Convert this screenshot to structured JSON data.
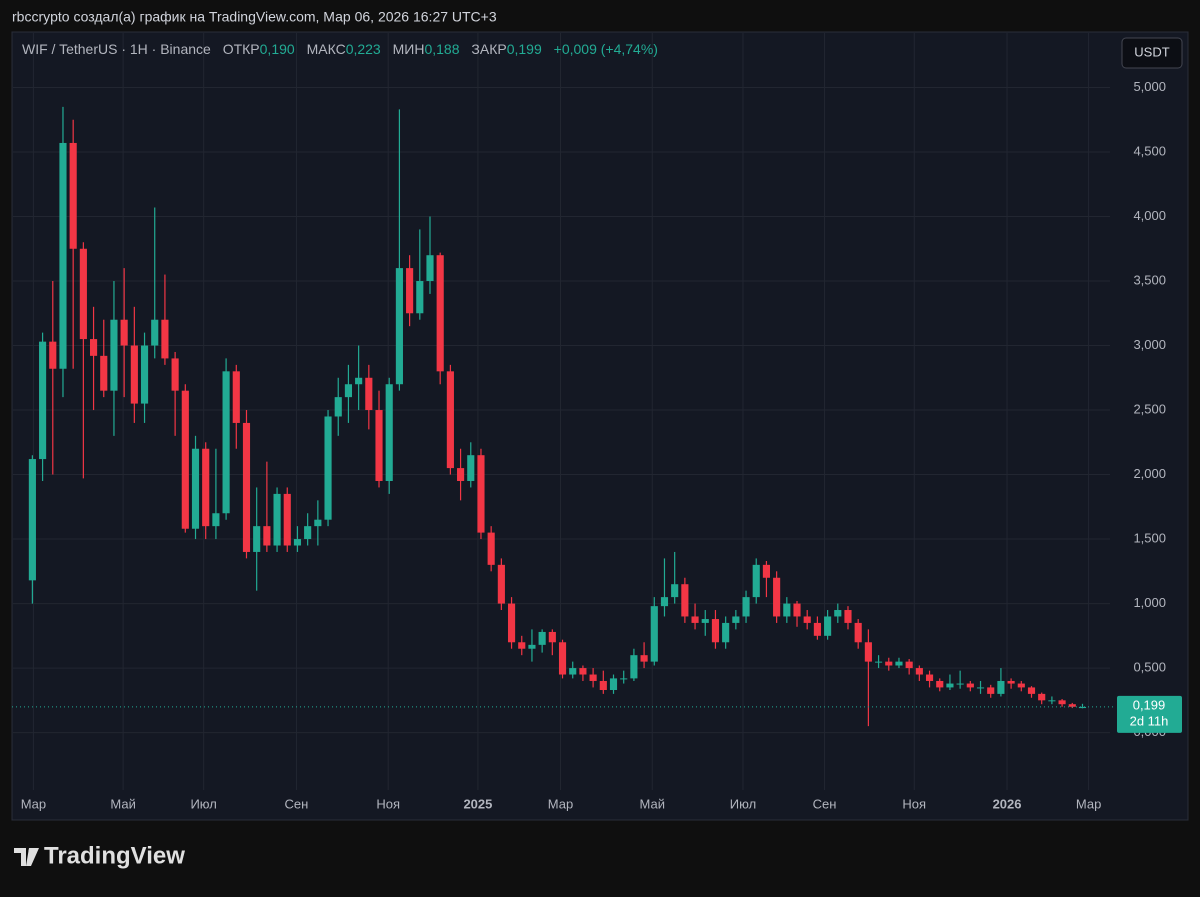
{
  "caption": "rbccrypto создал(а) график на TradingView.com, Мар 06, 2026 16:27 UTC+3",
  "brand": "TradingView",
  "currency_button": "USDT",
  "legend": {
    "symbol": "WIF / TetherUS · 1H · Binance",
    "open_label": "ОТКР",
    "open": "0,190",
    "high_label": "МАКС",
    "high": "0,223",
    "low_label": "МИН",
    "low": "0,188",
    "close_label": "ЗАКР",
    "close": "0,199",
    "change": "+0,009 (+4,74%)"
  },
  "chart_data": {
    "type": "candlestick",
    "up_color": "#22ab94",
    "down_color": "#f23645",
    "grid": true,
    "open": [
      1.18,
      2.12,
      3.03,
      2.82,
      4.57,
      3.75,
      3.05,
      2.92,
      2.65,
      3.2,
      3.0,
      2.55,
      3.0,
      3.2,
      2.9,
      2.65,
      1.58,
      2.2,
      1.6,
      1.7,
      2.8,
      2.4,
      1.4,
      1.6,
      1.45,
      1.85,
      1.45,
      1.5,
      1.6,
      1.65,
      2.45,
      2.6,
      2.7,
      2.75,
      2.5,
      1.95,
      2.7,
      3.6,
      3.25,
      3.5,
      3.7,
      2.8,
      2.05,
      1.95,
      2.15,
      1.55,
      1.3,
      1.0,
      0.7,
      0.65,
      0.68,
      0.78,
      0.7,
      0.45,
      0.5,
      0.45,
      0.4,
      0.33,
      0.42,
      0.42,
      0.6,
      0.55,
      0.98,
      1.05,
      1.15,
      0.9,
      0.85,
      0.88,
      0.7,
      0.85,
      0.9,
      1.05,
      1.3,
      1.2,
      0.9,
      1.0,
      0.9,
      0.85,
      0.75,
      0.9,
      0.95,
      0.85,
      0.7,
      0.55,
      0.55,
      0.52,
      0.55,
      0.5,
      0.45,
      0.4,
      0.35,
      0.38,
      0.38,
      0.35,
      0.35,
      0.3,
      0.4,
      0.38,
      0.35,
      0.3,
      0.25,
      0.25,
      0.22,
      0.19
    ],
    "high": [
      2.15,
      3.1,
      3.5,
      4.85,
      4.75,
      3.8,
      3.3,
      3.2,
      3.5,
      3.6,
      3.3,
      3.1,
      4.07,
      3.55,
      2.95,
      2.7,
      2.3,
      2.25,
      2.2,
      2.9,
      2.85,
      2.5,
      1.9,
      2.1,
      1.9,
      1.9,
      1.6,
      1.7,
      1.8,
      2.5,
      2.75,
      2.85,
      3.0,
      2.85,
      2.65,
      2.75,
      4.83,
      3.7,
      3.9,
      4.0,
      3.72,
      2.85,
      2.2,
      2.25,
      2.2,
      1.6,
      1.35,
      1.05,
      0.75,
      0.8,
      0.8,
      0.8,
      0.72,
      0.55,
      0.52,
      0.5,
      0.48,
      0.45,
      0.48,
      0.65,
      0.7,
      1.05,
      1.35,
      1.4,
      1.2,
      1.0,
      0.95,
      0.95,
      0.9,
      0.95,
      1.1,
      1.35,
      1.33,
      1.25,
      1.05,
      1.02,
      0.95,
      0.9,
      0.95,
      1.0,
      0.98,
      0.88,
      0.8,
      0.6,
      0.58,
      0.58,
      0.57,
      0.52,
      0.48,
      0.42,
      0.45,
      0.48,
      0.4,
      0.4,
      0.37,
      0.5,
      0.42,
      0.4,
      0.36,
      0.31,
      0.28,
      0.26,
      0.23,
      0.223
    ],
    "low": [
      1.0,
      1.95,
      2.0,
      2.6,
      2.82,
      1.97,
      2.5,
      2.6,
      2.3,
      2.6,
      2.4,
      2.4,
      2.9,
      2.85,
      2.3,
      1.55,
      1.5,
      1.5,
      1.5,
      1.65,
      2.2,
      1.35,
      1.1,
      1.4,
      1.4,
      1.4,
      1.4,
      1.45,
      1.45,
      1.6,
      2.3,
      2.4,
      2.5,
      2.35,
      1.9,
      1.85,
      2.65,
      3.15,
      3.2,
      3.4,
      2.7,
      2.0,
      1.8,
      1.9,
      1.5,
      1.25,
      0.95,
      0.65,
      0.6,
      0.55,
      0.62,
      0.6,
      0.42,
      0.42,
      0.4,
      0.35,
      0.3,
      0.3,
      0.38,
      0.4,
      0.5,
      0.52,
      0.9,
      1.0,
      0.85,
      0.8,
      0.75,
      0.65,
      0.65,
      0.8,
      0.85,
      1.0,
      1.05,
      0.85,
      0.85,
      0.82,
      0.8,
      0.72,
      0.72,
      0.85,
      0.8,
      0.65,
      0.05,
      0.5,
      0.48,
      0.5,
      0.45,
      0.4,
      0.35,
      0.32,
      0.33,
      0.34,
      0.32,
      0.3,
      0.27,
      0.28,
      0.34,
      0.32,
      0.27,
      0.22,
      0.22,
      0.2,
      0.19,
      0.188
    ],
    "close": [
      2.12,
      3.03,
      2.82,
      4.57,
      3.75,
      3.05,
      2.92,
      2.65,
      3.2,
      3.0,
      2.55,
      3.0,
      3.2,
      2.9,
      2.65,
      1.58,
      2.2,
      1.6,
      1.7,
      2.8,
      2.4,
      1.4,
      1.6,
      1.45,
      1.85,
      1.45,
      1.5,
      1.6,
      1.65,
      2.45,
      2.6,
      2.7,
      2.75,
      2.5,
      1.95,
      2.7,
      3.6,
      3.25,
      3.5,
      3.7,
      2.8,
      2.05,
      1.95,
      2.15,
      1.55,
      1.3,
      1.0,
      0.7,
      0.65,
      0.68,
      0.78,
      0.7,
      0.45,
      0.5,
      0.45,
      0.4,
      0.33,
      0.42,
      0.42,
      0.6,
      0.55,
      0.98,
      1.05,
      1.15,
      0.9,
      0.85,
      0.88,
      0.7,
      0.85,
      0.9,
      1.05,
      1.3,
      1.2,
      0.9,
      1.0,
      0.9,
      0.85,
      0.75,
      0.9,
      0.95,
      0.85,
      0.7,
      0.55,
      0.55,
      0.52,
      0.55,
      0.5,
      0.45,
      0.4,
      0.35,
      0.38,
      0.38,
      0.35,
      0.35,
      0.3,
      0.4,
      0.38,
      0.35,
      0.3,
      0.25,
      0.25,
      0.22,
      0.2,
      0.199
    ],
    "xlim": [
      -2,
      105.7
    ],
    "xticks": [
      {
        "value": 0.1,
        "label": "Мар"
      },
      {
        "value": 8.9,
        "label": "Май"
      },
      {
        "value": 16.8,
        "label": "Июл"
      },
      {
        "value": 25.9,
        "label": "Сен"
      },
      {
        "value": 34.9,
        "label": "Ноя"
      },
      {
        "value": 43.7,
        "label": "2025"
      },
      {
        "value": 51.8,
        "label": "Мар"
      },
      {
        "value": 60.8,
        "label": "Май"
      },
      {
        "value": 69.7,
        "label": "Июл"
      },
      {
        "value": 77.7,
        "label": "Сен"
      },
      {
        "value": 86.5,
        "label": "Ноя"
      },
      {
        "value": 95.6,
        "label": "2026"
      },
      {
        "value": 103.6,
        "label": "Мар"
      }
    ],
    "ylim": [
      -0.445,
      5.43
    ],
    "yticks": [
      {
        "value": 0,
        "label": "0,000"
      },
      {
        "value": 0.5,
        "label": "0,500"
      },
      {
        "value": 1,
        "label": "1,000"
      },
      {
        "value": 1.5,
        "label": "1,500"
      },
      {
        "value": 2,
        "label": "2,000"
      },
      {
        "value": 2.5,
        "label": "2,500"
      },
      {
        "value": 3,
        "label": "3,000"
      },
      {
        "value": 3.5,
        "label": "3,500"
      },
      {
        "value": 4,
        "label": "4,000"
      },
      {
        "value": 4.5,
        "label": "4,500"
      },
      {
        "value": 5,
        "label": "5,000"
      }
    ],
    "last_price": {
      "value": 0.199,
      "label": "0,199"
    },
    "countdown": "2d 11h"
  }
}
